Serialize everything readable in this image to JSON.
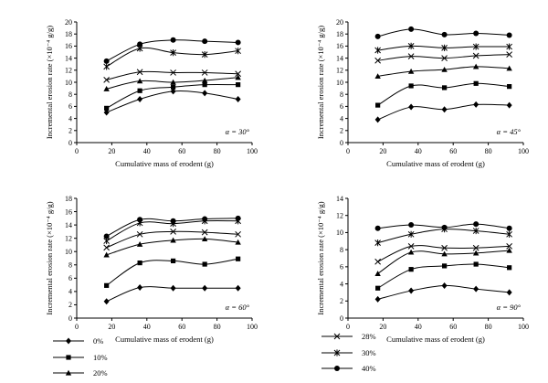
{
  "chart_data": [
    {
      "type": "line",
      "xlabel": "Cumulative mass of erodent (g)",
      "ylabel": "Incremental erosion rate (×10⁻⁴ g/g)",
      "xlim": [
        0,
        100
      ],
      "ylim": [
        0,
        20
      ],
      "xticks": [
        0,
        20,
        40,
        60,
        80,
        100
      ],
      "yticks": [
        0,
        2,
        4,
        6,
        8,
        10,
        12,
        14,
        16,
        18,
        20
      ],
      "annotation": "α = 30°",
      "x": [
        17,
        36,
        55,
        73,
        92
      ],
      "series": [
        {
          "name": "0%",
          "marker": "diamond",
          "values": [
            5.0,
            7.2,
            8.5,
            8.2,
            7.2
          ]
        },
        {
          "name": "10%",
          "marker": "square",
          "values": [
            5.7,
            8.6,
            9.2,
            9.6,
            9.6
          ]
        },
        {
          "name": "20%",
          "marker": "triangle",
          "values": [
            8.9,
            10.2,
            10.0,
            10.3,
            10.8
          ]
        },
        {
          "name": "28%",
          "marker": "x",
          "values": [
            10.4,
            11.7,
            11.6,
            11.6,
            11.4
          ]
        },
        {
          "name": "30%",
          "marker": "star",
          "values": [
            12.6,
            15.6,
            14.9,
            14.6,
            15.2
          ]
        },
        {
          "name": "40%",
          "marker": "circle",
          "values": [
            13.5,
            16.3,
            17.0,
            16.8,
            16.6
          ]
        }
      ]
    },
    {
      "type": "line",
      "xlabel": "Cumulative mass of erodent (g)",
      "ylabel": "Incremental erosion rate (×10⁻⁴ g/g)",
      "xlim": [
        0,
        100
      ],
      "ylim": [
        0,
        20
      ],
      "xticks": [
        0,
        20,
        40,
        60,
        80,
        100
      ],
      "yticks": [
        0,
        2,
        4,
        6,
        8,
        10,
        12,
        14,
        16,
        18,
        20
      ],
      "annotation": "α = 45°",
      "x": [
        17,
        36,
        55,
        73,
        92
      ],
      "series": [
        {
          "name": "0%",
          "marker": "diamond",
          "values": [
            3.8,
            5.9,
            5.5,
            6.3,
            6.2
          ]
        },
        {
          "name": "10%",
          "marker": "square",
          "values": [
            6.2,
            9.4,
            9.1,
            9.8,
            9.3
          ]
        },
        {
          "name": "20%",
          "marker": "triangle",
          "values": [
            11.0,
            11.8,
            12.1,
            12.6,
            12.3
          ]
        },
        {
          "name": "28%",
          "marker": "x",
          "values": [
            13.6,
            14.3,
            14.0,
            14.4,
            14.6
          ]
        },
        {
          "name": "30%",
          "marker": "star",
          "values": [
            15.3,
            16.0,
            15.7,
            15.9,
            15.9
          ]
        },
        {
          "name": "40%",
          "marker": "circle",
          "values": [
            17.6,
            18.8,
            17.9,
            18.1,
            17.8
          ]
        }
      ]
    },
    {
      "type": "line",
      "xlabel": "Cumulative mass of erodent (g)",
      "ylabel": "Incremental erosion rate (×10⁻⁴ g/g)",
      "xlim": [
        0,
        100
      ],
      "ylim": [
        0,
        18
      ],
      "xticks": [
        0,
        20,
        40,
        60,
        80,
        100
      ],
      "yticks": [
        0,
        2,
        4,
        6,
        8,
        10,
        12,
        14,
        16,
        18
      ],
      "annotation": "α = 60°",
      "x": [
        17,
        36,
        55,
        73,
        92
      ],
      "series": [
        {
          "name": "0%",
          "marker": "diamond",
          "values": [
            2.5,
            4.6,
            4.5,
            4.5,
            4.5
          ]
        },
        {
          "name": "10%",
          "marker": "square",
          "values": [
            4.9,
            8.3,
            8.6,
            8.1,
            8.9
          ]
        },
        {
          "name": "20%",
          "marker": "triangle",
          "values": [
            9.5,
            11.1,
            11.7,
            11.9,
            11.4
          ]
        },
        {
          "name": "28%",
          "marker": "x",
          "values": [
            10.6,
            12.6,
            13.0,
            12.9,
            12.6
          ]
        },
        {
          "name": "30%",
          "marker": "star",
          "values": [
            11.6,
            14.3,
            14.2,
            14.6,
            14.6
          ]
        },
        {
          "name": "40%",
          "marker": "circle",
          "values": [
            12.3,
            14.8,
            14.6,
            14.9,
            15.0
          ]
        }
      ]
    },
    {
      "type": "line",
      "xlabel": "Cumulative mass of erodent (g)",
      "ylabel": "Incremental erosion rate (×10⁻⁴ g/g)",
      "xlim": [
        0,
        100
      ],
      "ylim": [
        0,
        14
      ],
      "xticks": [
        0,
        20,
        40,
        60,
        80,
        100
      ],
      "yticks": [
        0,
        2,
        4,
        6,
        8,
        10,
        12,
        14
      ],
      "annotation": "α = 90°",
      "x": [
        17,
        36,
        55,
        73,
        92
      ],
      "series": [
        {
          "name": "0%",
          "marker": "diamond",
          "values": [
            2.2,
            3.2,
            3.8,
            3.4,
            3.0
          ]
        },
        {
          "name": "10%",
          "marker": "square",
          "values": [
            3.5,
            5.7,
            6.1,
            6.3,
            5.9
          ]
        },
        {
          "name": "20%",
          "marker": "triangle",
          "values": [
            5.2,
            7.7,
            7.5,
            7.6,
            7.9
          ]
        },
        {
          "name": "28%",
          "marker": "x",
          "values": [
            6.6,
            8.4,
            8.2,
            8.2,
            8.4
          ]
        },
        {
          "name": "30%",
          "marker": "star",
          "values": [
            8.8,
            9.8,
            10.4,
            10.2,
            9.8
          ]
        },
        {
          "name": "40%",
          "marker": "circle",
          "values": [
            10.5,
            10.9,
            10.6,
            11.0,
            10.5
          ]
        }
      ]
    }
  ],
  "legends": [
    {
      "column": "left",
      "items": [
        {
          "marker": "diamond",
          "label": "0%"
        },
        {
          "marker": "square",
          "label": "10%"
        },
        {
          "marker": "triangle",
          "label": "20%"
        }
      ]
    },
    {
      "column": "right",
      "items": [
        {
          "marker": "x",
          "label": "28%"
        },
        {
          "marker": "star",
          "label": "30%"
        },
        {
          "marker": "circle",
          "label": "40%"
        }
      ]
    }
  ]
}
